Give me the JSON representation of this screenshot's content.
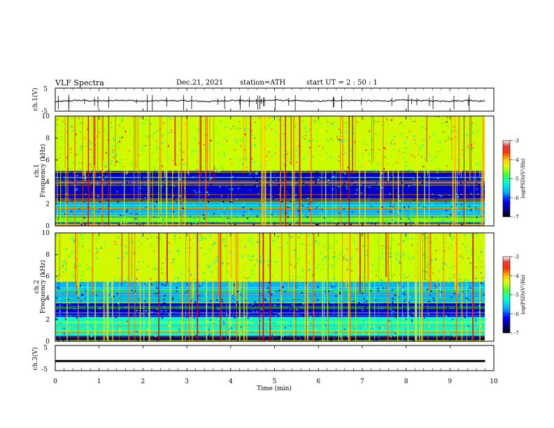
{
  "header": {
    "title": "VLF  Spectra",
    "date": "Dec.21, 2021",
    "station": "station=ATH",
    "start": "start  UT  =   2  : 50 : 1"
  },
  "chart_data": [
    {
      "type": "line",
      "title": "",
      "ylabel": "ch.1(V)",
      "ylim": [
        -5,
        5
      ],
      "yticks": [
        "5",
        "-5"
      ],
      "x": [
        0,
        0.5,
        1,
        1.5,
        2,
        2.5,
        3,
        3.5,
        4,
        4.5,
        5,
        5.5,
        6,
        6.5,
        7,
        7.5,
        8,
        8.5,
        9,
        9.5,
        9.8
      ],
      "values": [
        -0.9,
        -0.3,
        -0.6,
        -0.2,
        -0.7,
        -0.4,
        -0.5,
        -0.8,
        -0.3,
        -0.6,
        -0.2,
        -0.5,
        -0.7,
        -0.3,
        -0.4,
        -0.6,
        -0.2,
        -0.5,
        -0.6,
        -0.3,
        -0.7
      ],
      "color": "#000000"
    },
    {
      "type": "heatmap",
      "title": "",
      "channel_label": "ch.1",
      "ylabel": "Frequency  (kHz)",
      "ylim": [
        0,
        10
      ],
      "yticks": [
        "0",
        "2",
        "4",
        "6",
        "8",
        "10"
      ],
      "colorbar": {
        "label": "log(PSD)(V²/Hz)",
        "ticks": [
          "-3",
          "-4",
          "-5",
          "-6",
          "-7"
        ],
        "range": [
          -7,
          -3
        ]
      },
      "bands_khz": [
        {
          "from": 10,
          "to": 5,
          "level": -4.3
        },
        {
          "from": 5,
          "to": 2.2,
          "level": -6.3
        },
        {
          "from": 2.2,
          "to": 0.7,
          "level": -5.7
        },
        {
          "from": 0.7,
          "to": 0.3,
          "level": -4.8
        },
        {
          "from": 0.3,
          "to": 0,
          "level": -7
        }
      ]
    },
    {
      "type": "heatmap",
      "title": "",
      "channel_label": "ch.2",
      "ylabel": "Frequency  (kHz)",
      "ylim": [
        0,
        10
      ],
      "yticks": [
        "0",
        "2",
        "4",
        "6",
        "8",
        "10"
      ],
      "colorbar": {
        "label": "log(PSD)(V²/Hz)",
        "ticks": [
          "-3",
          "-4",
          "-5",
          "-6",
          "-7"
        ],
        "range": [
          -7,
          -3
        ]
      },
      "bands_khz": [
        {
          "from": 10,
          "to": 5.5,
          "level": -4.6
        },
        {
          "from": 5.5,
          "to": 3.5,
          "level": -5.8
        },
        {
          "from": 3.5,
          "to": 2.2,
          "level": -6.2
        },
        {
          "from": 2.2,
          "to": 0.5,
          "level": -5.1
        },
        {
          "from": 0.5,
          "to": 0,
          "level": -6.8
        }
      ]
    },
    {
      "type": "line",
      "title": "",
      "ylabel": "ch.3(V)",
      "ylim": [
        -5,
        5
      ],
      "yticks": [
        "5",
        "-5"
      ],
      "x": [
        0,
        9.8
      ],
      "values": [
        -1.2,
        -1.2
      ],
      "color": "#000000"
    }
  ],
  "xaxis": {
    "label": "Time  (min)",
    "range": [
      0,
      10
    ],
    "ticks": [
      "0",
      "1",
      "2",
      "3",
      "4",
      "5",
      "6",
      "7",
      "8",
      "9",
      "10"
    ]
  },
  "colormap": [
    "#000000",
    "#000060",
    "#0000cd",
    "#0050ff",
    "#00b4ff",
    "#00ffd0",
    "#40ff40",
    "#c8ff00",
    "#ffe000",
    "#ff7000",
    "#e00000",
    "#ffffff"
  ]
}
